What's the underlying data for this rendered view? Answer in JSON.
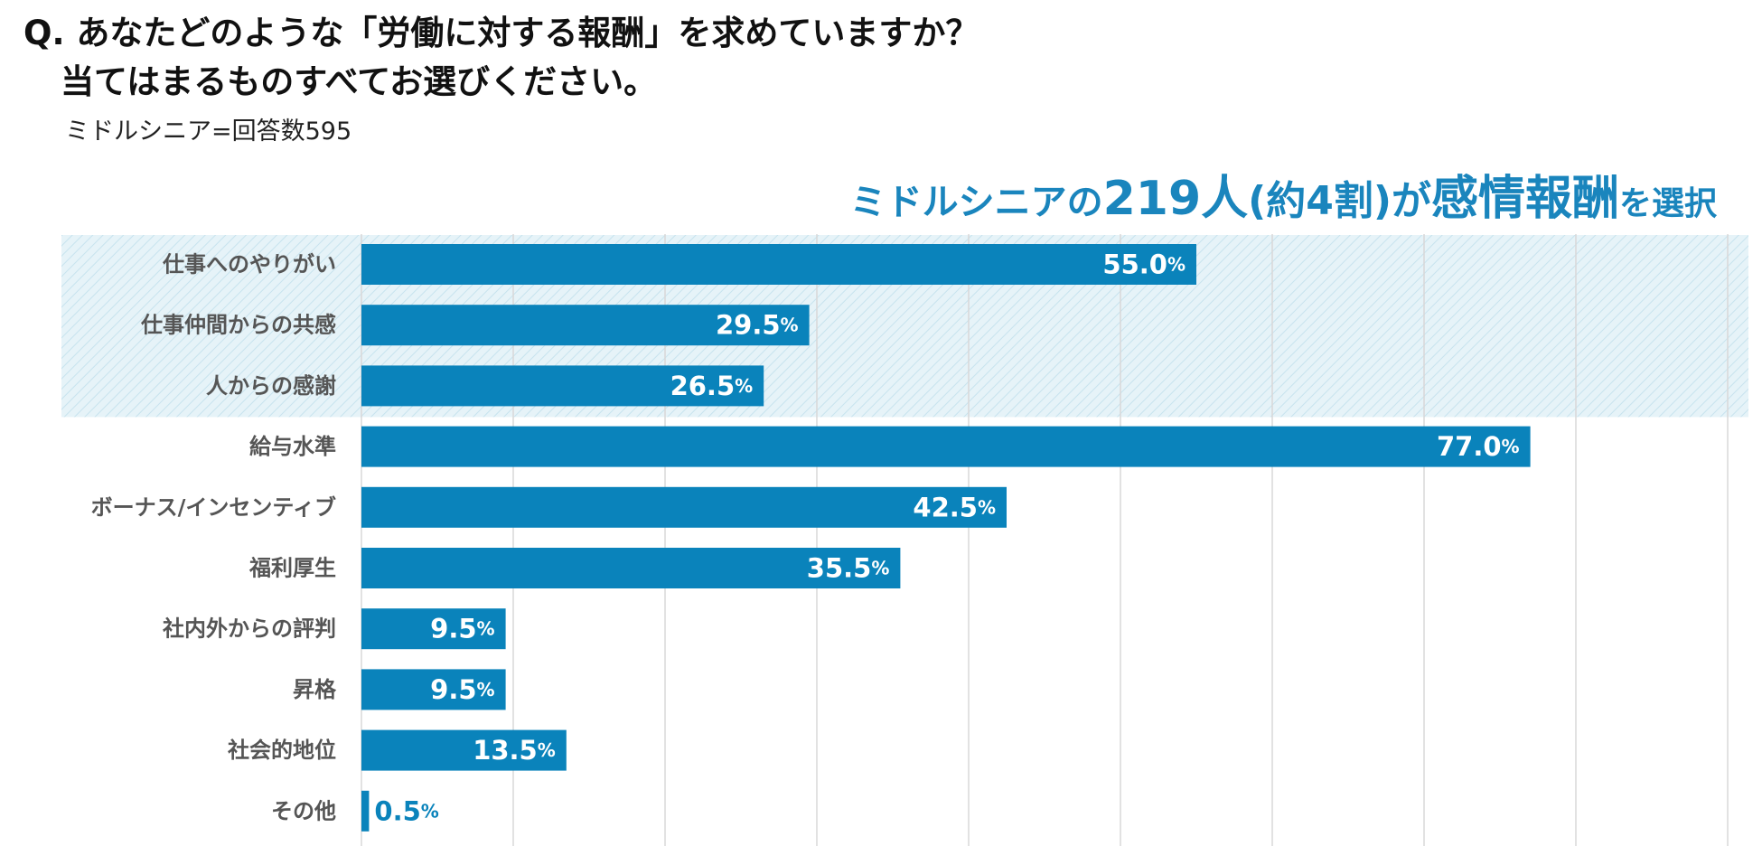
{
  "question": {
    "line1": "Q. あなたどのような「労働に対する報酬」を求めていますか？",
    "line2": "当てはまるものすべてお選びください。"
  },
  "sample_note": "ミドルシニア=回答数595",
  "headline": {
    "part1": "ミドルシニアの",
    "part2": "219人",
    "part3": "(約4割)",
    "part4": "が",
    "part5": "感情報酬",
    "part6": "を選択"
  },
  "chart_data": {
    "type": "bar",
    "orientation": "horizontal",
    "title": "ミドルシニアの219人(約4割)が感情報酬を選択",
    "categories": [
      "仕事へのやりがい",
      "仕事仲間からの共感",
      "人からの感謝",
      "給与水準",
      "ボーナス/インセンティブ",
      "福利厚生",
      "社内外からの評判",
      "昇格",
      "社会的地位",
      "その他"
    ],
    "values": [
      55.0,
      29.5,
      26.5,
      77.0,
      42.5,
      35.5,
      9.5,
      9.5,
      13.5,
      0.5
    ],
    "value_labels": [
      "55.0",
      "29.5",
      "26.5",
      "77.0",
      "42.5",
      "35.5",
      "9.5",
      "9.5",
      "13.5",
      "0.5"
    ],
    "unit": "%",
    "xlim": [
      0,
      90
    ],
    "grid": true,
    "gridlines": [
      0,
      10,
      20,
      30,
      40,
      50,
      60,
      70,
      80,
      90
    ],
    "highlight_group": {
      "categories": [
        "仕事へのやりがい",
        "仕事仲間からの共感",
        "人からの感謝"
      ],
      "meaning": "感情報酬"
    },
    "colors": {
      "bar": "#0a83bb",
      "highlight_bg": "#e6f3f8",
      "highlight_hatch": "#c7e3ee",
      "grid": "#d8d8d8",
      "outside_label": "#0a83bb"
    }
  }
}
